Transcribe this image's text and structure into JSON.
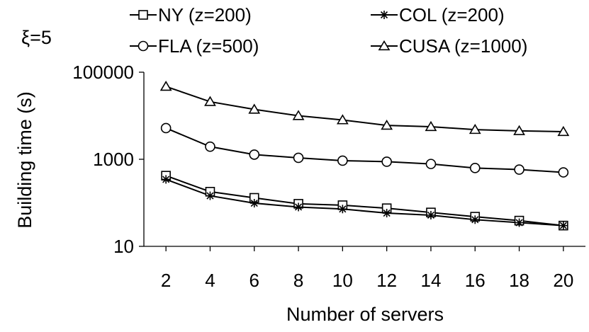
{
  "chart_data": {
    "type": "line",
    "annotation": "ξ=5",
    "xlabel": "Number of servers",
    "ylabel": "Building time (s)",
    "x": [
      2,
      4,
      6,
      8,
      10,
      12,
      14,
      16,
      18,
      20
    ],
    "xlim": [
      1,
      21
    ],
    "y_scale": "log",
    "ylim": [
      10,
      100000
    ],
    "y_ticks": [
      10,
      1000,
      100000
    ],
    "y_tick_labels": [
      "10",
      "1000",
      "100000"
    ],
    "x_tick_labels": [
      "2",
      "4",
      "6",
      "8",
      "10",
      "12",
      "14",
      "16",
      "18",
      "20"
    ],
    "grid": false,
    "legend_position": "top",
    "series": [
      {
        "name": "NY (z=200)",
        "marker": "square",
        "values": [
          420,
          180,
          130,
          95,
          88,
          75,
          60,
          48,
          39,
          30
        ]
      },
      {
        "name": "COL (z=200)",
        "marker": "star",
        "values": [
          345,
          145,
          98,
          80,
          72,
          58,
          52,
          41,
          35,
          30
        ]
      },
      {
        "name": "FLA (z=500)",
        "marker": "circle",
        "values": [
          5200,
          1950,
          1280,
          1080,
          930,
          880,
          780,
          630,
          580,
          500
        ]
      },
      {
        "name": "CUSA (z=1000)",
        "marker": "triangle",
        "values": [
          47000,
          21000,
          14000,
          10000,
          8000,
          6000,
          5600,
          4800,
          4500,
          4300
        ]
      }
    ]
  }
}
